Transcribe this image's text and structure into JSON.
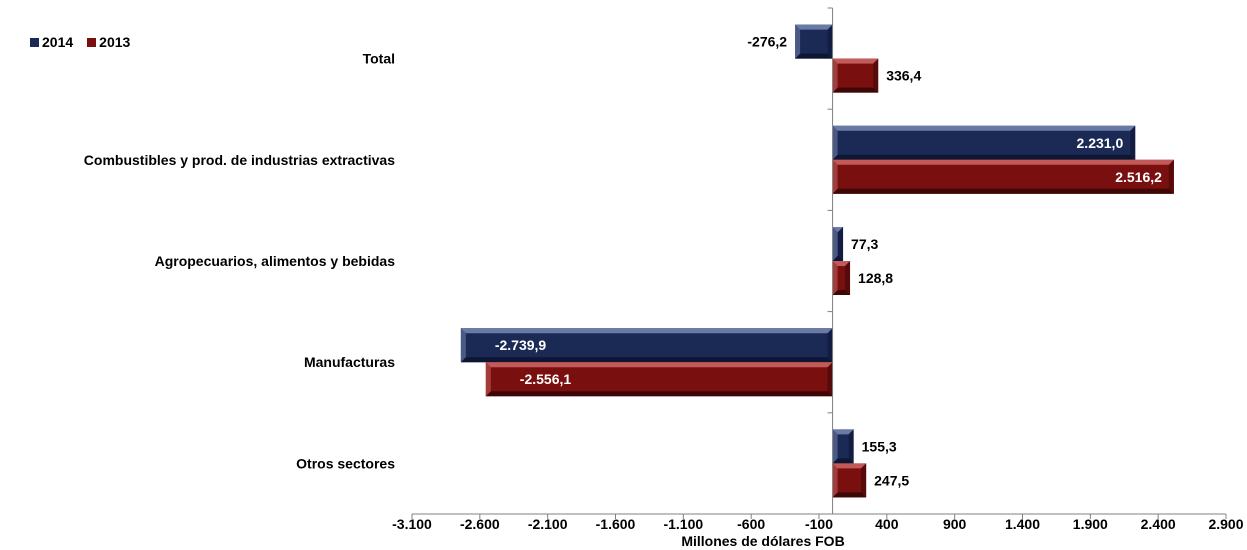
{
  "chart_data": {
    "type": "bar",
    "orientation": "horizontal",
    "categories": [
      "Total",
      "Combustibles y prod. de industrias extractivas",
      "Agropecuarios, alimentos y bebidas",
      "Manufacturas",
      "Otros sectores"
    ],
    "series": [
      {
        "name": "2014",
        "color": "#1b2a55",
        "values": [
          -276.2,
          2231.0,
          77.3,
          -2739.9,
          155.3
        ],
        "labels": [
          "-276,2",
          "2.231,0",
          "77,3",
          "-2.739,9",
          "155,3"
        ]
      },
      {
        "name": "2013",
        "color": "#7a0f0f",
        "values": [
          336.4,
          2516.2,
          128.8,
          -2556.1,
          247.5
        ],
        "labels": [
          "336,4",
          "2.516,2",
          "128,8",
          "-2.556,1",
          "247,5"
        ]
      }
    ],
    "xlabel": "Millones de dólares FOB",
    "xlim": [
      -3100,
      2900
    ],
    "ticks": [
      -3100,
      -2600,
      -2100,
      -1600,
      -1100,
      -600,
      -100,
      400,
      900,
      1400,
      1900,
      2400,
      2900
    ],
    "tick_labels": [
      "-3.100",
      "-2.600",
      "-2.100",
      "-1.600",
      "-1.100",
      "-600",
      "-100",
      "400",
      "900",
      "1.400",
      "1.900",
      "2.400",
      "2.900"
    ],
    "legend_position": "top-left",
    "grid": false
  }
}
